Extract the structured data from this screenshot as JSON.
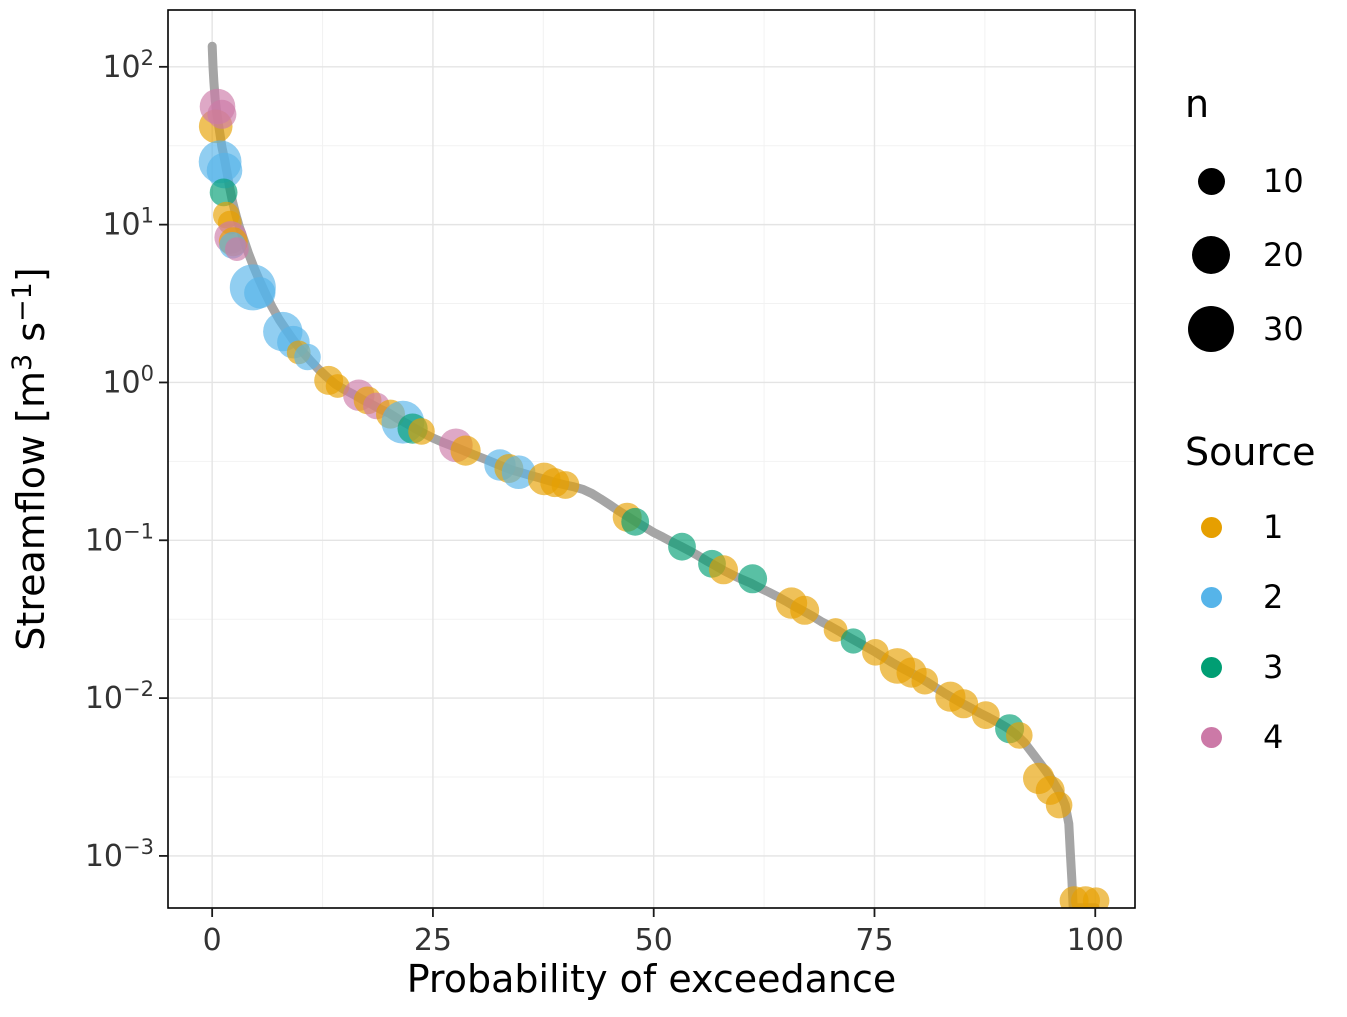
{
  "figure": {
    "bg": "#FFFFFF",
    "panel_border": "#000000",
    "grid_major": "#E4E4E4",
    "grid_minor": "#F2F2F2",
    "tick_color": "#1a1a1a",
    "tick_text_color": "#333333",
    "title_text_color": "#000000",
    "line_color": "#A5A5A5",
    "point_opacity": 0.65
  },
  "chart_data": {
    "type": "scatter",
    "title": "",
    "xlabel": "Probability of exceedance",
    "ylabel": "Streamflow [m³ s⁻¹]",
    "ylabel_parts": [
      {
        "t": "Streamflow [m",
        "sup": false
      },
      {
        "t": "3",
        "sup": true
      },
      {
        "t": " s",
        "sup": false
      },
      {
        "t": "−1",
        "sup": true
      },
      {
        "t": "]",
        "sup": false
      }
    ],
    "x_ticks": [
      0,
      25,
      50,
      75,
      100
    ],
    "x_minor_ticks": [
      12.5,
      37.5,
      62.5,
      87.5
    ],
    "y_tick_exponents": [
      -3,
      -2,
      -1,
      0,
      1,
      2
    ],
    "y_minor_exponents": [
      -2.5,
      -1.5,
      -0.5,
      0.5,
      1.5
    ],
    "x_domain": [
      -5,
      104.5
    ],
    "y_log_domain": [
      -3.33,
      2.36
    ],
    "size_scale_factor": 4.2,
    "source_colors": {
      "1": "#E69F00",
      "2": "#56B4E9",
      "3": "#009E73",
      "4": "#CC79A7"
    },
    "legend_n": {
      "title": "n",
      "items": [
        {
          "n": 10,
          "label": "10"
        },
        {
          "n": 20,
          "label": "20"
        },
        {
          "n": 30,
          "label": "30"
        }
      ]
    },
    "legend_source": {
      "title": "Source",
      "items": [
        {
          "source": "1",
          "label": "1"
        },
        {
          "source": "2",
          "label": "2"
        },
        {
          "source": "3",
          "label": "3"
        },
        {
          "source": "4",
          "label": "4"
        }
      ]
    },
    "line": [
      [
        0,
        135
      ],
      [
        0.1,
        100
      ],
      [
        0.2,
        80
      ],
      [
        0.35,
        62
      ],
      [
        0.5,
        52
      ],
      [
        0.7,
        44
      ],
      [
        0.9,
        37
      ],
      [
        1.1,
        31
      ],
      [
        1.4,
        26
      ],
      [
        1.7,
        21
      ],
      [
        2.0,
        17
      ],
      [
        2.3,
        14
      ],
      [
        2.7,
        11.5
      ],
      [
        3.1,
        9.6
      ],
      [
        3.6,
        8.0
      ],
      [
        4.1,
        6.6
      ],
      [
        4.7,
        5.4
      ],
      [
        5.3,
        4.5
      ],
      [
        6.0,
        3.7
      ],
      [
        6.8,
        3.0
      ],
      [
        7.6,
        2.5
      ],
      [
        8.4,
        2.15
      ],
      [
        9.2,
        1.85
      ],
      [
        10.0,
        1.62
      ],
      [
        11,
        1.4
      ],
      [
        12,
        1.22
      ],
      [
        13,
        1.08
      ],
      [
        14,
        0.97
      ],
      [
        15,
        0.9
      ],
      [
        16,
        0.84
      ],
      [
        17,
        0.78
      ],
      [
        18,
        0.73
      ],
      [
        19,
        0.68
      ],
      [
        20,
        0.64
      ],
      [
        21,
        0.59
      ],
      [
        22,
        0.55
      ],
      [
        23,
        0.51
      ],
      [
        24,
        0.475
      ],
      [
        25,
        0.445
      ],
      [
        26,
        0.42
      ],
      [
        27,
        0.4
      ],
      [
        28,
        0.38
      ],
      [
        29,
        0.36
      ],
      [
        30,
        0.342
      ],
      [
        31,
        0.325
      ],
      [
        32,
        0.308
      ],
      [
        33,
        0.292
      ],
      [
        34,
        0.278
      ],
      [
        35,
        0.268
      ],
      [
        36,
        0.258
      ],
      [
        37,
        0.249
      ],
      [
        38,
        0.24
      ],
      [
        39,
        0.231
      ],
      [
        40,
        0.224
      ],
      [
        41,
        0.218
      ],
      [
        42,
        0.21
      ],
      [
        43,
        0.198
      ],
      [
        44,
        0.183
      ],
      [
        45,
        0.168
      ],
      [
        46,
        0.154
      ],
      [
        47,
        0.142
      ],
      [
        48,
        0.131
      ],
      [
        49,
        0.121
      ],
      [
        50,
        0.112
      ],
      [
        51,
        0.105
      ],
      [
        52,
        0.098
      ],
      [
        53,
        0.092
      ],
      [
        54,
        0.086
      ],
      [
        55,
        0.08
      ],
      [
        56,
        0.074
      ],
      [
        57,
        0.069
      ],
      [
        58,
        0.064
      ],
      [
        59,
        0.06
      ],
      [
        60,
        0.0565
      ],
      [
        61,
        0.0535
      ],
      [
        62,
        0.05
      ],
      [
        63,
        0.047
      ],
      [
        64,
        0.044
      ],
      [
        65,
        0.041
      ],
      [
        66,
        0.038
      ],
      [
        67,
        0.0355
      ],
      [
        68,
        0.033
      ],
      [
        69,
        0.0305
      ],
      [
        70,
        0.0285
      ],
      [
        71,
        0.0265
      ],
      [
        72,
        0.0245
      ],
      [
        73,
        0.0228
      ],
      [
        74,
        0.0212
      ],
      [
        75,
        0.0197
      ],
      [
        76,
        0.0182
      ],
      [
        77,
        0.0168
      ],
      [
        78,
        0.0156
      ],
      [
        79,
        0.0146
      ],
      [
        80,
        0.0136
      ],
      [
        81,
        0.0126
      ],
      [
        82,
        0.0116
      ],
      [
        83,
        0.0107
      ],
      [
        84,
        0.0099
      ],
      [
        85,
        0.0092
      ],
      [
        86,
        0.0086
      ],
      [
        87,
        0.008
      ],
      [
        88,
        0.0075
      ],
      [
        89,
        0.007
      ],
      [
        90,
        0.0065
      ],
      [
        91,
        0.0059
      ],
      [
        92,
        0.0052
      ],
      [
        93,
        0.0044
      ],
      [
        94,
        0.0037
      ],
      [
        95,
        0.0031
      ],
      [
        96,
        0.0025
      ],
      [
        96.6,
        0.0021
      ],
      [
        97.0,
        0.0016
      ],
      [
        97.2,
        0.001
      ],
      [
        97.35,
        0.0007
      ],
      [
        97.5,
        0.00047
      ],
      [
        100,
        0.00047
      ]
    ],
    "points": [
      {
        "x": 0.4,
        "y": 42,
        "source": "1",
        "n": 16
      },
      {
        "x": 0.6,
        "y": 56,
        "source": "4",
        "n": 18
      },
      {
        "x": 1.1,
        "y": 50,
        "source": "4",
        "n": 12
      },
      {
        "x": 0.9,
        "y": 25,
        "source": "2",
        "n": 26
      },
      {
        "x": 1.4,
        "y": 22,
        "source": "2",
        "n": 18
      },
      {
        "x": 1.3,
        "y": 16,
        "source": "3",
        "n": 11
      },
      {
        "x": 1.6,
        "y": 11.5,
        "source": "1",
        "n": 10
      },
      {
        "x": 2.0,
        "y": 10.3,
        "source": "1",
        "n": 8
      },
      {
        "x": 2.1,
        "y": 8.3,
        "source": "4",
        "n": 15
      },
      {
        "x": 2.4,
        "y": 7.8,
        "source": "1",
        "n": 12
      },
      {
        "x": 2.3,
        "y": 7.4,
        "source": "2",
        "n": 10
      },
      {
        "x": 2.8,
        "y": 7.0,
        "source": "4",
        "n": 8
      },
      {
        "x": 4.6,
        "y": 4.0,
        "source": "2",
        "n": 30
      },
      {
        "x": 5.4,
        "y": 3.7,
        "source": "2",
        "n": 14
      },
      {
        "x": 8.0,
        "y": 2.1,
        "source": "2",
        "n": 22
      },
      {
        "x": 9.2,
        "y": 1.8,
        "source": "2",
        "n": 15
      },
      {
        "x": 9.8,
        "y": 1.55,
        "source": "1",
        "n": 8
      },
      {
        "x": 10.8,
        "y": 1.45,
        "source": "2",
        "n": 10
      },
      {
        "x": 13.2,
        "y": 1.03,
        "source": "1",
        "n": 12
      },
      {
        "x": 14.2,
        "y": 0.95,
        "source": "1",
        "n": 8
      },
      {
        "x": 16.6,
        "y": 0.83,
        "source": "4",
        "n": 14
      },
      {
        "x": 17.6,
        "y": 0.77,
        "source": "1",
        "n": 11
      },
      {
        "x": 18.6,
        "y": 0.71,
        "source": "4",
        "n": 10
      },
      {
        "x": 20.2,
        "y": 0.63,
        "source": "1",
        "n": 12
      },
      {
        "x": 21.6,
        "y": 0.56,
        "source": "2",
        "n": 26
      },
      {
        "x": 22.7,
        "y": 0.51,
        "source": "3",
        "n": 13
      },
      {
        "x": 23.7,
        "y": 0.49,
        "source": "1",
        "n": 10
      },
      {
        "x": 27.6,
        "y": 0.4,
        "source": "4",
        "n": 16
      },
      {
        "x": 28.7,
        "y": 0.37,
        "source": "1",
        "n": 13
      },
      {
        "x": 32.6,
        "y": 0.3,
        "source": "2",
        "n": 14
      },
      {
        "x": 33.6,
        "y": 0.285,
        "source": "1",
        "n": 12
      },
      {
        "x": 34.7,
        "y": 0.27,
        "source": "2",
        "n": 16
      },
      {
        "x": 37.6,
        "y": 0.245,
        "source": "1",
        "n": 15
      },
      {
        "x": 38.8,
        "y": 0.232,
        "source": "1",
        "n": 12
      },
      {
        "x": 40.0,
        "y": 0.224,
        "source": "1",
        "n": 11
      },
      {
        "x": 47.0,
        "y": 0.14,
        "source": "1",
        "n": 12
      },
      {
        "x": 47.9,
        "y": 0.131,
        "source": "3",
        "n": 11
      },
      {
        "x": 53.2,
        "y": 0.091,
        "source": "3",
        "n": 11
      },
      {
        "x": 56.6,
        "y": 0.071,
        "source": "3",
        "n": 11
      },
      {
        "x": 57.9,
        "y": 0.065,
        "source": "1",
        "n": 12
      },
      {
        "x": 61.2,
        "y": 0.057,
        "source": "3",
        "n": 12
      },
      {
        "x": 65.6,
        "y": 0.04,
        "source": "1",
        "n": 14
      },
      {
        "x": 67.1,
        "y": 0.036,
        "source": "1",
        "n": 12
      },
      {
        "x": 70.6,
        "y": 0.027,
        "source": "1",
        "n": 8
      },
      {
        "x": 72.6,
        "y": 0.023,
        "source": "3",
        "n": 9
      },
      {
        "x": 75.1,
        "y": 0.0195,
        "source": "1",
        "n": 10
      },
      {
        "x": 77.6,
        "y": 0.016,
        "source": "1",
        "n": 18
      },
      {
        "x": 79.2,
        "y": 0.0145,
        "source": "1",
        "n": 13
      },
      {
        "x": 80.7,
        "y": 0.0128,
        "source": "1",
        "n": 10
      },
      {
        "x": 83.6,
        "y": 0.0102,
        "source": "1",
        "n": 13
      },
      {
        "x": 85.1,
        "y": 0.0092,
        "source": "1",
        "n": 12
      },
      {
        "x": 87.6,
        "y": 0.0078,
        "source": "1",
        "n": 11
      },
      {
        "x": 90.3,
        "y": 0.0064,
        "source": "3",
        "n": 12
      },
      {
        "x": 91.4,
        "y": 0.0058,
        "source": "1",
        "n": 10
      },
      {
        "x": 93.6,
        "y": 0.0031,
        "source": "1",
        "n": 14
      },
      {
        "x": 94.9,
        "y": 0.0026,
        "source": "1",
        "n": 12
      },
      {
        "x": 95.9,
        "y": 0.0021,
        "source": "1",
        "n": 10
      },
      {
        "x": 97.6,
        "y": 0.00052,
        "source": "1",
        "n": 12
      },
      {
        "x": 98.9,
        "y": 0.00052,
        "source": "1",
        "n": 12
      },
      {
        "x": 100.1,
        "y": 0.00052,
        "source": "1",
        "n": 10
      }
    ]
  }
}
